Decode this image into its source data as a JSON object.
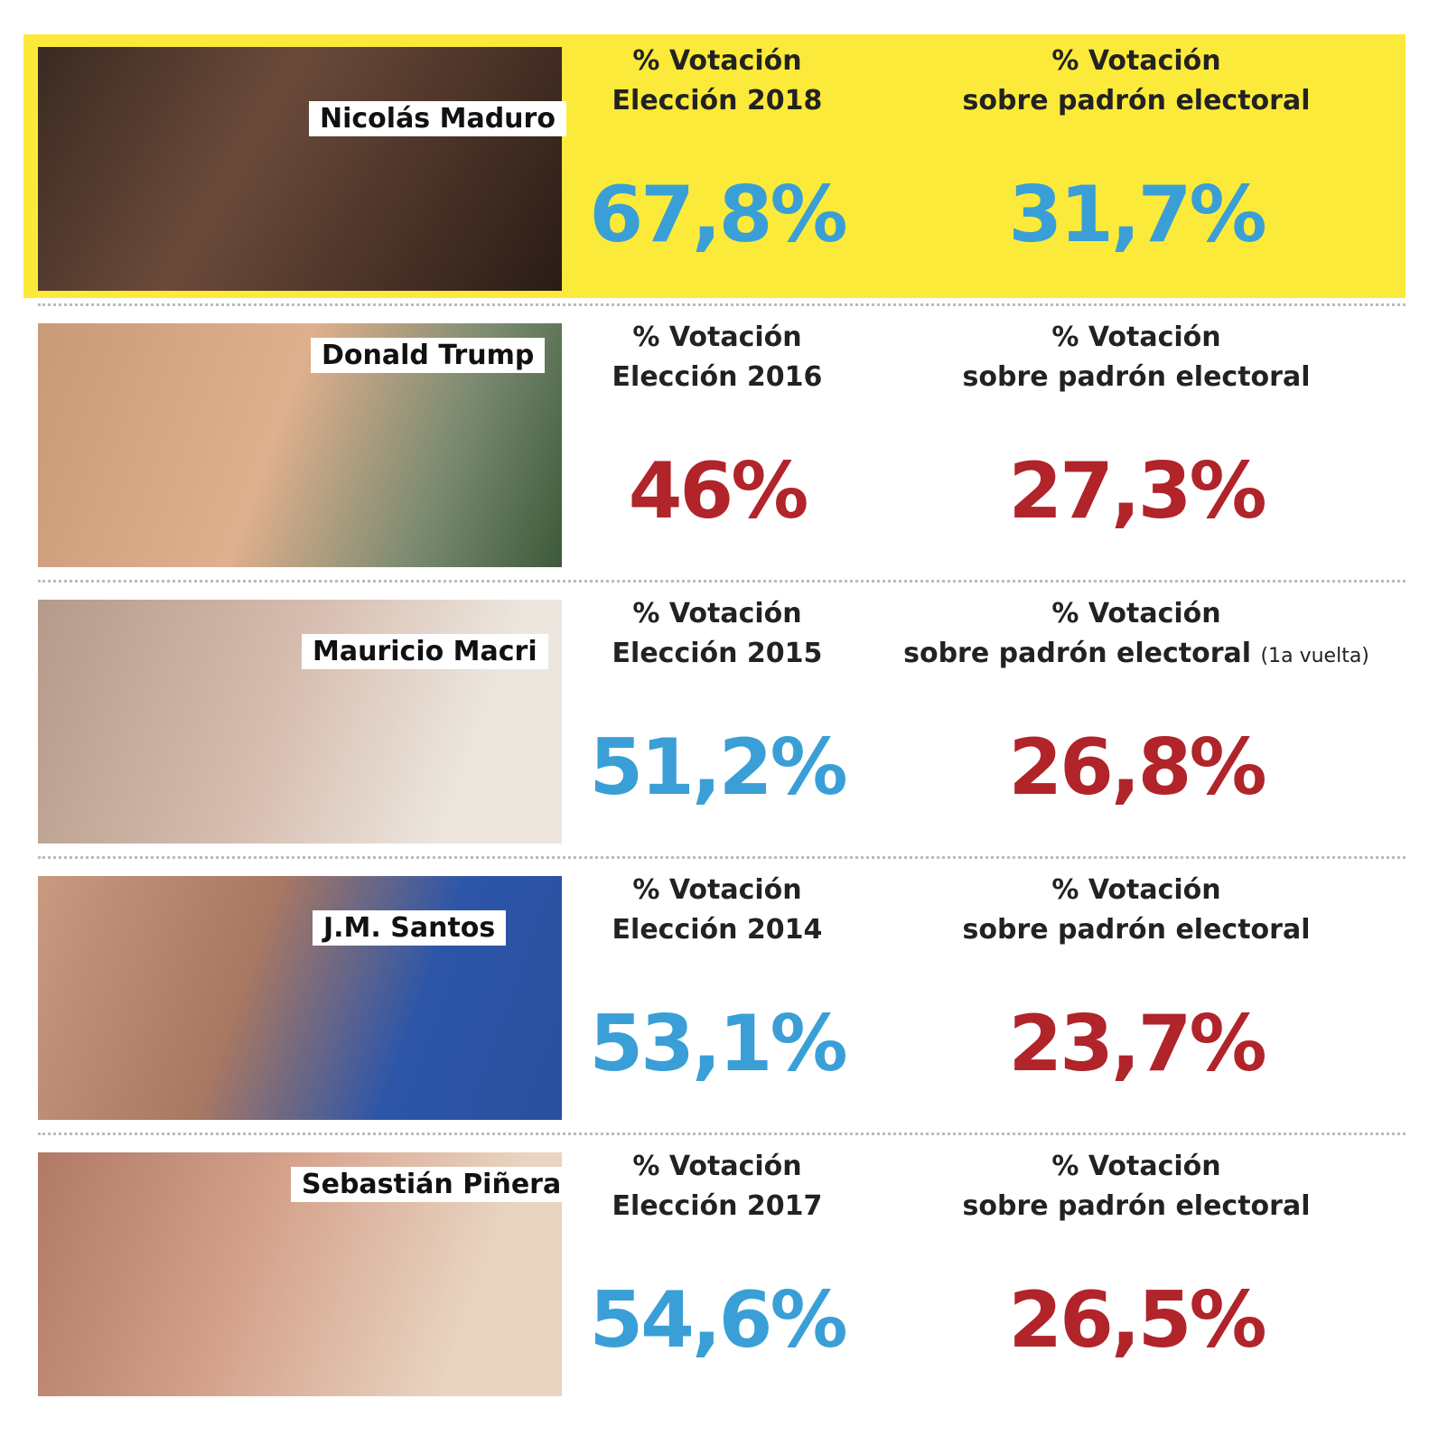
{
  "rows": [
    {
      "name": "Nicolás Maduro",
      "highlight": true,
      "col1": {
        "line1": "% Votación",
        "line2": "Elección 2018",
        "value": "67,8%",
        "color": "#3a9fd6"
      },
      "col2": {
        "line1": "% Votación",
        "line2": "sobre padrón electoral",
        "value": "31,7%",
        "color": "#3a9fd6"
      }
    },
    {
      "name": "Donald Trump",
      "highlight": false,
      "col1": {
        "line1": "% Votación",
        "line2": "Elección 2016",
        "value": "46%",
        "color": "#b0242a"
      },
      "col2": {
        "line1": "% Votación",
        "line2": "sobre padrón electoral",
        "value": "27,3%",
        "color": "#b0242a"
      }
    },
    {
      "name": "Mauricio Macri",
      "highlight": false,
      "col1": {
        "line1": "% Votación",
        "line2": "Elección 2015",
        "value": "51,2%",
        "color": "#3a9fd6"
      },
      "col2": {
        "line1": "% Votación",
        "line2": "sobre padrón electoral",
        "note": "(1a vuelta)",
        "value": "26,8%",
        "color": "#b0242a"
      }
    },
    {
      "name": "J.M. Santos",
      "highlight": false,
      "col1": {
        "line1": "% Votación",
        "line2": "Elección 2014",
        "value": "53,1%",
        "color": "#3a9fd6"
      },
      "col2": {
        "line1": "% Votación",
        "line2": "sobre padrón electoral",
        "value": "23,7%",
        "color": "#b0242a"
      }
    },
    {
      "name": "Sebastián Piñera",
      "highlight": false,
      "col1": {
        "line1": "% Votación",
        "line2": "Elección 2017",
        "value": "54,6%",
        "color": "#3a9fd6"
      },
      "col2": {
        "line1": "% Votación",
        "line2": "sobre padrón electoral",
        "value": "26,5%",
        "color": "#b0242a"
      }
    }
  ]
}
